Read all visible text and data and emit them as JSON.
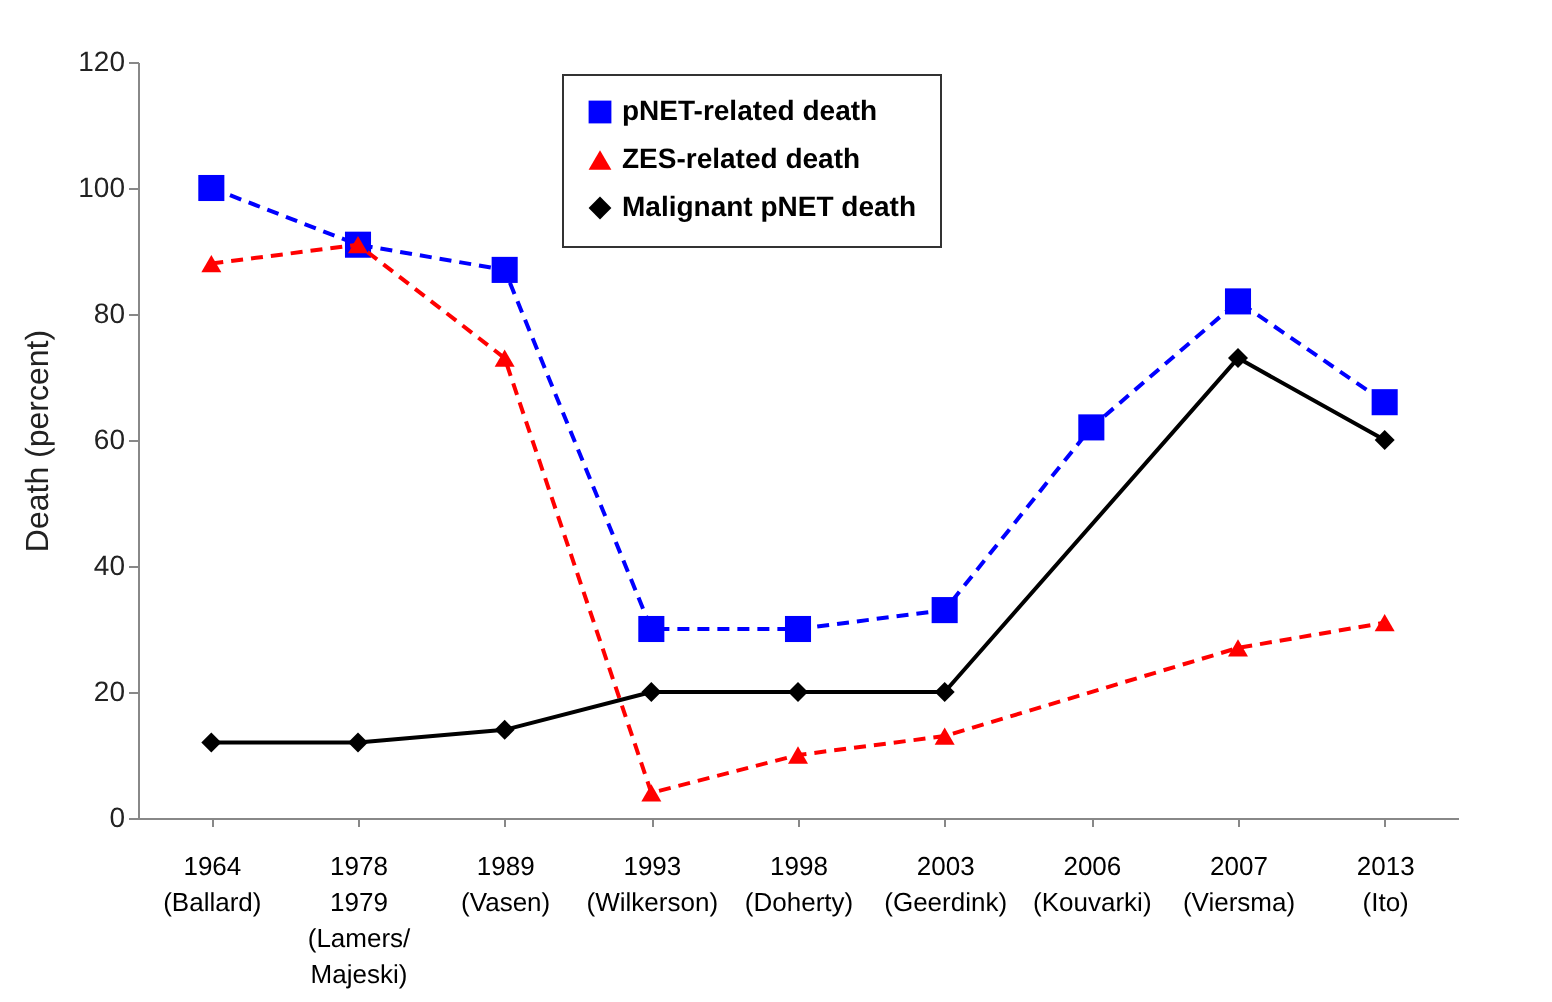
{
  "chart_data": {
    "type": "line",
    "ylabel": "Death (percent)",
    "categories": [
      "1964\n(Ballard)",
      "1978\n1979\n(Lamers/\nMajeski)",
      "1989\n(Vasen)",
      "1993\n(Wilkerson)",
      "1998\n(Doherty)",
      "2003\n(Geerdink)",
      "2006\n(Kouvarki)",
      "2007\n(Viersma)",
      "2013\n(Ito)"
    ],
    "series": [
      {
        "name": "pNET-related death",
        "color": "#0000ff",
        "marker": "square",
        "line_style": "dashed",
        "values": [
          100,
          91,
          87,
          30,
          30,
          33,
          62,
          82,
          66
        ]
      },
      {
        "name": "ZES-related death",
        "color": "#ff0000",
        "marker": "triangle",
        "line_style": "dashed",
        "values": [
          88,
          91,
          73,
          4,
          10,
          13,
          null,
          27,
          31
        ]
      },
      {
        "name": "Malignant pNET death",
        "color": "#000000",
        "marker": "diamond",
        "line_style": "solid",
        "values": [
          12,
          12,
          14,
          20,
          20,
          20,
          null,
          73,
          60
        ]
      }
    ],
    "ylim": [
      0,
      120
    ],
    "yticks": [
      0,
      20,
      40,
      60,
      80,
      100,
      120
    ],
    "grid": false,
    "legend": "top"
  }
}
